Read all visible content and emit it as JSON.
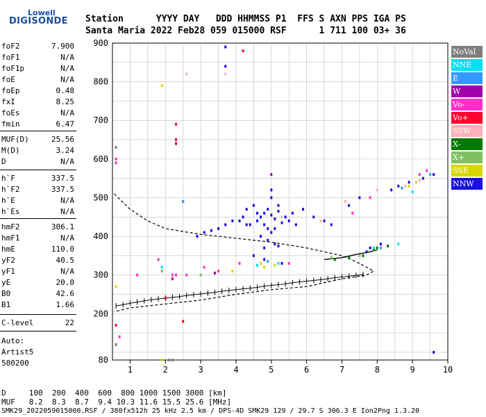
{
  "logo": {
    "top": "Lowell",
    "main": "DIGISONDE"
  },
  "header": {
    "line1": "Station      YYYY DAY   DDD HHMMSS P1  FFS S AXN PPS IGA PS",
    "line2": "Santa Maria 2022 Feb28 059 015000 RSF      1 711 100 03+ 36"
  },
  "params": [
    {
      "name": "foF2",
      "value": "7.900"
    },
    {
      "name": "foF1",
      "value": "N/A"
    },
    {
      "name": "foF1p",
      "value": "N/A"
    },
    {
      "name": "foE",
      "value": "N/A"
    },
    {
      "name": "foEp",
      "value": "0.48"
    },
    {
      "name": "fxI",
      "value": "8.25"
    },
    {
      "name": "foEs",
      "value": "N/A"
    },
    {
      "name": "fmin",
      "value": "6.47"
    },
    {
      "name": "MUF(D)",
      "value": "25.56"
    },
    {
      "name": "M(D)",
      "value": "3.24"
    },
    {
      "name": "D",
      "value": "N/A"
    },
    {
      "name": "h`F",
      "value": "337.5"
    },
    {
      "name": "h`F2",
      "value": "337.5"
    },
    {
      "name": "h`E",
      "value": "N/A"
    },
    {
      "name": "h`Es",
      "value": "N/A"
    },
    {
      "name": "hmF2",
      "value": "306.1"
    },
    {
      "name": "hmF1",
      "value": "N/A"
    },
    {
      "name": "hmE",
      "value": "110.0"
    },
    {
      "name": "yF2",
      "value": "40.5"
    },
    {
      "name": "yF1",
      "value": "N/A"
    },
    {
      "name": "yE",
      "value": "20.0"
    },
    {
      "name": "B0",
      "value": "42.6"
    },
    {
      "name": "B1",
      "value": "1.66"
    },
    {
      "name": "C-level",
      "value": "22"
    }
  ],
  "autoscale": {
    "line1": "Auto:",
    "line2": "Artist5",
    "line3": "500200"
  },
  "legend": [
    {
      "label": "NoVal",
      "color": "#7f7f7f"
    },
    {
      "label": "NNE",
      "color": "#00e0f0"
    },
    {
      "label": "E",
      "color": "#3399ff"
    },
    {
      "label": "W",
      "color": "#a000a8"
    },
    {
      "label": "Vo-",
      "color": "#ff30c8"
    },
    {
      "label": "Vo+",
      "color": "#ff0030"
    },
    {
      "label": "SSW",
      "color": "#ffb0b8"
    },
    {
      "label": "X-",
      "color": "#007a00"
    },
    {
      "label": "X+",
      "color": "#80c060"
    },
    {
      "label": "SSE",
      "color": "#d8d800"
    },
    {
      "label": "NNW",
      "color": "#1a10e0"
    }
  ],
  "footer": {
    "d_row": "D     100  200  400  600  800 1000 1500 3000 [km]",
    "muf_row": "MUF   8.2  8.3  8.7  9.4 10.3 11.6 15.5 25.6 [MHz]",
    "file_row": "SMK29_2022059015000.RSF / 380fx512h 25 kHz 2.5 km / DPS-4D SMK29 129 / 29.7 S 306.3 E Ion2Png 1.3.20"
  },
  "chart_data": {
    "type": "scatter",
    "xlim": [
      0.5,
      10
    ],
    "ylim": [
      80,
      900
    ],
    "x_ticks": [
      1,
      2,
      3,
      4,
      5,
      6,
      7,
      8,
      9,
      10
    ],
    "y_ticks": [
      80,
      200,
      300,
      400,
      500,
      600,
      700,
      800,
      900
    ],
    "grid": true,
    "series": [
      {
        "name": "NNW",
        "color": "#1a10e0",
        "points": [
          [
            4.6,
            440
          ],
          [
            4.7,
            450
          ],
          [
            4.8,
            460
          ],
          [
            4.9,
            470
          ],
          [
            5.0,
            455
          ],
          [
            5.1,
            445
          ],
          [
            5.2,
            465
          ],
          [
            5.3,
            435
          ],
          [
            4.8,
            430
          ],
          [
            4.9,
            420
          ],
          [
            5.0,
            410
          ],
          [
            5.1,
            420
          ],
          [
            4.7,
            400
          ],
          [
            4.9,
            390
          ],
          [
            5.1,
            380
          ],
          [
            4.8,
            370
          ],
          [
            5.2,
            375
          ],
          [
            4.6,
            460
          ],
          [
            5.4,
            450
          ],
          [
            5.5,
            440
          ],
          [
            5.6,
            460
          ],
          [
            5.7,
            430
          ],
          [
            5.9,
            470
          ],
          [
            4.5,
            480
          ],
          [
            4.3,
            470
          ],
          [
            4.2,
            450
          ],
          [
            4.1,
            440
          ],
          [
            4.4,
            430
          ],
          [
            3.9,
            440
          ],
          [
            3.7,
            430
          ],
          [
            3.5,
            420
          ],
          [
            3.3,
            415
          ],
          [
            3.1,
            410
          ],
          [
            2.9,
            400
          ],
          [
            5.0,
            500
          ],
          [
            5.0,
            520
          ],
          [
            5.2,
            480
          ],
          [
            6.2,
            450
          ],
          [
            6.5,
            440
          ],
          [
            6.7,
            430
          ],
          [
            7.2,
            480
          ],
          [
            7.5,
            500
          ],
          [
            8.4,
            520
          ],
          [
            8.6,
            530
          ],
          [
            8.9,
            540
          ],
          [
            9.3,
            550
          ],
          [
            9.6,
            560
          ],
          [
            7.8,
            370
          ],
          [
            7.7,
            360
          ],
          [
            8.1,
            380
          ],
          [
            3.7,
            890
          ],
          [
            3.7,
            840
          ],
          [
            4.3,
            430
          ],
          [
            4.5,
            350
          ],
          [
            4.8,
            340
          ],
          [
            5.3,
            330
          ],
          [
            9.6,
            100
          ],
          [
            2.5,
            490
          ]
        ]
      },
      {
        "name": "Vo-",
        "color": "#ff30c8",
        "points": [
          [
            1.2,
            300
          ],
          [
            1.8,
            340
          ],
          [
            2.2,
            300
          ],
          [
            2.3,
            300
          ],
          [
            2.6,
            300
          ],
          [
            3.1,
            320
          ],
          [
            3.5,
            310
          ],
          [
            5.5,
            330
          ],
          [
            7.3,
            460
          ],
          [
            7.8,
            500
          ],
          [
            9.2,
            560
          ],
          [
            9.4,
            570
          ],
          [
            0.6,
            590
          ],
          [
            0.6,
            600
          ],
          [
            0.7,
            140
          ],
          [
            4.1,
            330
          ]
        ]
      },
      {
        "name": "Vo+",
        "color": "#ff0030",
        "points": [
          [
            2.3,
            690
          ],
          [
            2.3,
            650
          ],
          [
            4.2,
            880
          ],
          [
            0.6,
            170
          ],
          [
            2.5,
            180
          ],
          [
            2.0,
            240
          ]
        ]
      },
      {
        "name": "SSW",
        "color": "#ffb0b8",
        "points": [
          [
            2.6,
            820
          ],
          [
            3.7,
            820
          ],
          [
            7.1,
            490
          ],
          [
            8.0,
            520
          ],
          [
            8.8,
            530
          ],
          [
            9.2,
            545
          ],
          [
            5.3,
            450
          ],
          [
            6.4,
            440
          ]
        ]
      },
      {
        "name": "X-",
        "color": "#007a00",
        "points": [
          [
            8.0,
            370
          ],
          [
            7.9,
            365
          ],
          [
            7.6,
            350
          ],
          [
            7.2,
            345
          ],
          [
            6.8,
            340
          ],
          [
            8.3,
            375
          ]
        ]
      },
      {
        "name": "X+",
        "color": "#80c060",
        "points": [
          [
            1.9,
            310
          ],
          [
            3.0,
            300
          ],
          [
            6.7,
            345
          ],
          [
            7.5,
            350
          ]
        ]
      },
      {
        "name": "SSE",
        "color": "#d8d800",
        "points": [
          [
            1.9,
            790
          ],
          [
            1.9,
            80
          ],
          [
            0.6,
            270
          ],
          [
            4.7,
            330
          ],
          [
            4.8,
            320
          ],
          [
            5.1,
            325
          ],
          [
            8.9,
            530
          ],
          [
            9.1,
            540
          ],
          [
            3.9,
            310
          ]
        ]
      },
      {
        "name": "NNE",
        "color": "#00e0f0",
        "points": [
          [
            1.9,
            320
          ],
          [
            4.6,
            325
          ],
          [
            5.2,
            330
          ],
          [
            7.9,
            370
          ],
          [
            8.6,
            380
          ],
          [
            9.0,
            515
          ]
        ]
      },
      {
        "name": "E",
        "color": "#3399ff",
        "points": [
          [
            2.5,
            490
          ],
          [
            4.9,
            335
          ],
          [
            8.1,
            370
          ],
          [
            8.7,
            525
          ],
          [
            9.5,
            560
          ]
        ]
      },
      {
        "name": "W",
        "color": "#a000a8",
        "points": [
          [
            2.2,
            290
          ],
          [
            3.4,
            305
          ],
          [
            5.0,
            560
          ],
          [
            2.3,
            640
          ]
        ]
      },
      {
        "name": "NoVal",
        "color": "#7f7f7f",
        "points": [
          [
            0.6,
            630
          ],
          [
            2.1,
            80
          ],
          [
            2.2,
            80
          ],
          [
            0.6,
            120
          ]
        ]
      }
    ],
    "trace_dashed": [
      [
        0.55,
        510
      ],
      [
        1.0,
        470
      ],
      [
        1.5,
        440
      ],
      [
        2.0,
        420
      ],
      [
        3.0,
        405
      ],
      [
        4.0,
        395
      ],
      [
        5.0,
        385
      ],
      [
        6.0,
        370
      ],
      [
        7.0,
        350
      ],
      [
        7.5,
        330
      ],
      [
        7.9,
        310
      ],
      [
        7.7,
        300
      ],
      [
        7.0,
        290
      ],
      [
        6.0,
        270
      ],
      [
        5.0,
        262
      ],
      [
        4.0,
        250
      ],
      [
        3.0,
        235
      ],
      [
        2.0,
        225
      ],
      [
        1.0,
        215
      ],
      [
        0.55,
        205
      ]
    ],
    "trace_solid": [
      [
        6.5,
        340
      ],
      [
        7.0,
        345
      ],
      [
        7.5,
        355
      ],
      [
        7.8,
        360
      ],
      [
        8.0,
        365
      ]
    ],
    "profile_markers": [
      [
        0.6,
        220
      ],
      [
        0.8,
        223
      ],
      [
        1.0,
        227
      ],
      [
        1.2,
        230
      ],
      [
        1.4,
        233
      ],
      [
        1.6,
        236
      ],
      [
        1.8,
        238
      ],
      [
        2.0,
        240
      ],
      [
        2.2,
        242
      ],
      [
        2.4,
        244
      ],
      [
        2.6,
        247
      ],
      [
        2.8,
        249
      ],
      [
        3.0,
        251
      ],
      [
        3.2,
        253
      ],
      [
        3.4,
        255
      ],
      [
        3.6,
        258
      ],
      [
        3.8,
        260
      ],
      [
        4.0,
        262
      ],
      [
        4.2,
        264
      ],
      [
        4.4,
        266
      ],
      [
        4.6,
        268
      ],
      [
        4.8,
        271
      ],
      [
        5.0,
        273
      ],
      [
        5.2,
        275
      ],
      [
        5.4,
        277
      ],
      [
        5.6,
        280
      ],
      [
        5.8,
        282
      ],
      [
        6.0,
        284
      ],
      [
        6.2,
        286
      ],
      [
        6.4,
        288
      ],
      [
        6.6,
        290
      ],
      [
        6.8,
        293
      ],
      [
        7.0,
        295
      ],
      [
        7.2,
        297
      ],
      [
        7.4,
        299
      ],
      [
        7.6,
        301
      ]
    ]
  }
}
